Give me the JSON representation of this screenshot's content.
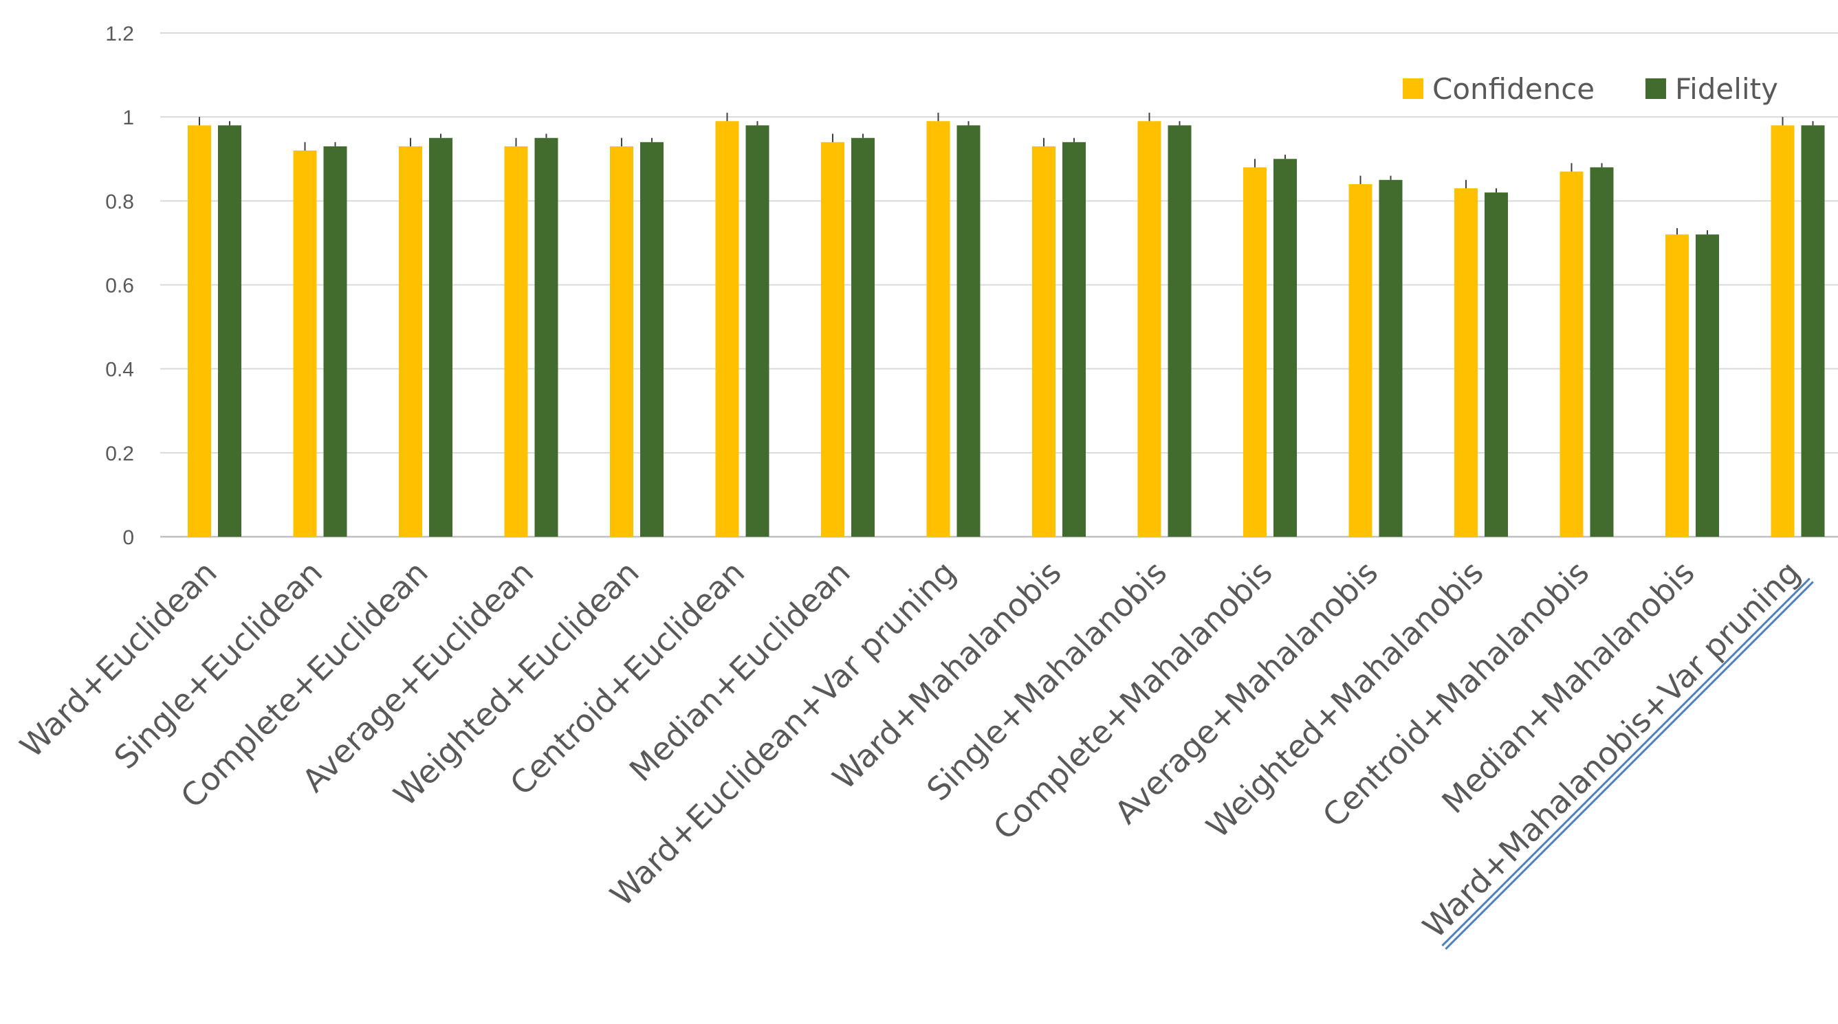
{
  "chart_data": {
    "type": "bar",
    "categories": [
      "Ward+Euclidean",
      "Single+Euclidean",
      "Complete+Euclidean",
      "Average+Euclidean",
      "Weighted+Euclidean",
      "Centroid+Euclidean",
      "Median+Euclidean",
      "Ward+Euclidean+Var pruning",
      "Ward+Mahalanobis",
      "Single+Mahalanobis",
      "Complete+Mahalanobis",
      "Average+Mahalanobis",
      "Weighted+Mahalanobis",
      "Centroid+Mahalanobis",
      "Median+Mahalanobis",
      "Ward+Mahalanobis+Var pruning"
    ],
    "series": [
      {
        "name": "Confidence",
        "color": "#FFC000",
        "values": [
          0.98,
          0.92,
          0.93,
          0.93,
          0.93,
          0.99,
          0.94,
          0.99,
          0.93,
          0.99,
          0.88,
          0.84,
          0.83,
          0.87,
          0.72,
          0.98
        ],
        "errors": [
          0.02,
          0.02,
          0.02,
          0.02,
          0.02,
          0.02,
          0.02,
          0.02,
          0.02,
          0.02,
          0.02,
          0.02,
          0.02,
          0.02,
          0.015,
          0.02
        ]
      },
      {
        "name": "Fidelity",
        "color": "#426B2E",
        "values": [
          0.98,
          0.93,
          0.95,
          0.95,
          0.94,
          0.98,
          0.95,
          0.98,
          0.94,
          0.98,
          0.9,
          0.85,
          0.82,
          0.88,
          0.72,
          0.98
        ],
        "errors": [
          0.01,
          0.01,
          0.01,
          0.01,
          0.01,
          0.01,
          0.01,
          0.01,
          0.01,
          0.01,
          0.01,
          0.01,
          0.01,
          0.01,
          0.01,
          0.01
        ]
      }
    ],
    "y_ticks": [
      "0",
      "0.2",
      "0.4",
      "0.6",
      "0.8",
      "1",
      "1.2"
    ],
    "ylim": [
      0,
      1.2
    ],
    "grid": true,
    "legend_position": "top-right",
    "highlighted_category": "Ward+Mahalanobis+Var pruning",
    "title": "",
    "xlabel": "",
    "ylabel": ""
  }
}
